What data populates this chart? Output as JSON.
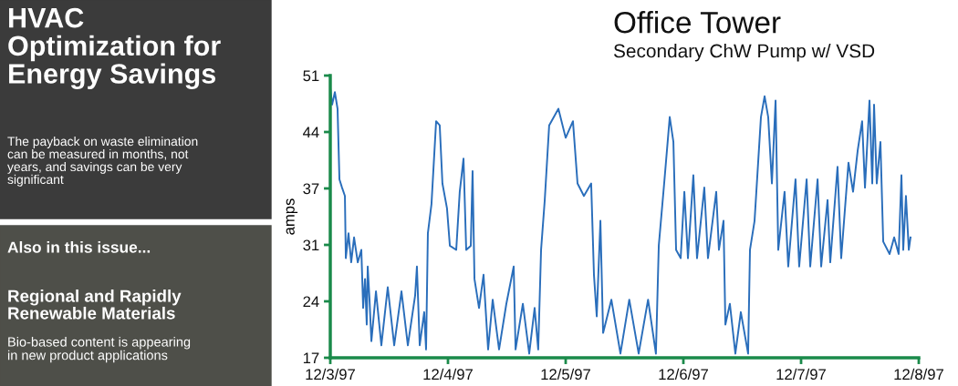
{
  "chart_data": {
    "type": "line",
    "title": "Office Tower",
    "subtitle": "Secondary ChW Pump w/ VSD",
    "ylabel": "amps",
    "annotations": [
      "HVAC\nOptimization for\nEnergy Savings",
      "The payback on waste elimination\ncan be measured in months, not\nyears, and savings can be very\nsignificant",
      "Also in this issue...",
      "Regional and Rapidly\nRenewable Materials",
      "Bio-based content is appearing\nin new product applications"
    ],
    "x": [
      "1997-12-03T00:00",
      "1997-12-03T00:23",
      "1997-12-03T00:56",
      "1997-12-03T01:29",
      "1997-12-03T01:52",
      "1997-12-03T02:24",
      "1997-12-03T02:59",
      "1997-12-03T03:10",
      "1997-12-03T03:43",
      "1997-12-03T04:16",
      "1997-12-03T04:51",
      "1997-12-03T05:36",
      "1997-12-03T06:20",
      "1997-12-03T06:42",
      "1997-12-03T07:05",
      "1997-12-03T07:26",
      "1997-12-03T07:38",
      "1997-12-03T08:00",
      "1997-12-03T08:23",
      "1997-12-03T09:19",
      "1997-12-03T10:25",
      "1997-12-03T11:43",
      "1997-12-03T13:02",
      "1997-12-03T14:31",
      "1997-12-03T15:49",
      "1997-12-03T17:18",
      "1997-12-03T17:40",
      "1997-12-03T18:14",
      "1997-12-03T19:09",
      "1997-12-03T19:32",
      "1997-12-03T19:54",
      "1997-12-03T20:38",
      "1997-12-03T21:35",
      "1997-12-03T22:19",
      "1997-12-03T22:52",
      "1997-12-03T23:48",
      "1997-12-04T00:23",
      "1997-12-04T01:41",
      "1997-12-04T02:24",
      "1997-12-04T03:10",
      "1997-12-04T03:43",
      "1997-12-04T04:39",
      "1997-12-04T05:01",
      "1997-12-04T05:24",
      "1997-12-04T06:20",
      "1997-12-04T07:15",
      "1997-12-04T08:11",
      "1997-12-04T09:07",
      "1997-12-04T10:25",
      "1997-12-04T11:54",
      "1997-12-04T13:24",
      "1997-12-04T13:47",
      "1997-12-04T15:16",
      "1997-12-04T16:34",
      "1997-12-04T17:40",
      "1997-12-04T18:24",
      "1997-12-04T18:59",
      "1997-12-04T19:44",
      "1997-12-04T20:38",
      "1997-12-04T22:31",
      "1997-12-05T00:00",
      "1997-12-05T01:29",
      "1997-12-05T02:25",
      "1997-12-05T03:43",
      "1997-12-05T05:12",
      "1997-12-05T05:46",
      "1997-12-05T06:20",
      "1997-12-05T07:05",
      "1997-12-05T07:38",
      "1997-12-05T09:19",
      "1997-12-05T11:10",
      "1997-12-05T12:58",
      "1997-12-05T14:53",
      "1997-12-05T16:48",
      "1997-12-05T18:24",
      "1997-12-05T18:59",
      "1997-12-05T20:05",
      "1997-12-05T21:13",
      "1997-12-05T21:58",
      "1997-12-05T22:31",
      "1997-12-05T23:27",
      "1997-12-06T00:12",
      "1997-12-06T00:56",
      "1997-12-06T02:02",
      "1997-12-06T02:47",
      "1997-12-06T04:16",
      "1997-12-06T05:01",
      "1997-12-06T06:42",
      "1997-12-06T07:15",
      "1997-12-06T08:11",
      "1997-12-06T08:34",
      "1997-12-06T09:29",
      "1997-12-06T10:36",
      "1997-12-06T11:43",
      "1997-12-06T13:12",
      "1997-12-06T13:35",
      "1997-12-06T14:31",
      "1997-12-06T15:49",
      "1997-12-06T16:34",
      "1997-12-06T17:18",
      "1997-12-06T18:03",
      "1997-12-06T18:48",
      "1997-12-06T19:21",
      "1997-12-06T20:38",
      "1997-12-06T21:23",
      "1997-12-06T22:52",
      "1997-12-06T23:37",
      "1997-12-07T01:08",
      "1997-12-07T01:52",
      "1997-12-07T03:22",
      "1997-12-07T04:06",
      "1997-12-07T05:24",
      "1997-12-07T05:57",
      "1997-12-07T07:26",
      "1997-12-07T08:11",
      "1997-12-07T09:40",
      "1997-12-07T10:36",
      "1997-12-07T11:33",
      "1997-12-07T12:27",
      "1997-12-07T13:02",
      "1997-12-07T13:57",
      "1997-12-07T14:31",
      "1997-12-07T14:53",
      "1997-12-07T15:26",
      "1997-12-07T16:11",
      "1997-12-07T16:45",
      "1997-12-07T18:03",
      "1997-12-07T18:59",
      "1997-12-07T19:54",
      "1997-12-07T20:28",
      "1997-12-07T20:50",
      "1997-12-07T21:23",
      "1997-12-07T21:58",
      "1997-12-07T22:19"
    ],
    "series": [
      {
        "color": "#2a6ebb",
        "values": [
          49.5,
          47.5,
          49,
          47,
          38.5,
          37.5,
          36.5,
          29,
          32,
          28.5,
          31.5,
          28.5,
          30,
          23,
          26.5,
          21,
          28,
          24,
          19,
          25,
          18.5,
          25.5,
          18.5,
          25,
          18.5,
          24.5,
          28,
          18.5,
          22.5,
          18,
          32,
          35.5,
          45.5,
          45,
          38,
          35,
          30.5,
          30,
          37,
          41,
          30,
          30.5,
          39.5,
          26.5,
          23,
          27,
          18,
          24,
          18,
          23.5,
          28,
          18,
          23.5,
          17.5,
          23,
          18,
          30,
          36,
          45,
          47,
          43.5,
          45.5,
          38,
          36.5,
          38,
          27,
          22,
          33.5,
          20,
          24,
          17.5,
          24,
          17.5,
          24,
          17.5,
          30.5,
          38,
          46,
          43,
          30,
          29,
          37,
          29,
          39,
          29,
          37.5,
          29,
          37,
          30,
          33.5,
          21,
          23.5,
          17.5,
          22.5,
          17.5,
          30,
          33.5,
          46,
          48.5,
          46,
          38,
          48,
          30,
          37,
          28,
          38.5,
          28,
          38.5,
          28,
          38.5,
          28,
          36,
          28.5,
          40,
          29,
          40.5,
          37,
          42,
          45.5,
          37.5,
          48,
          38,
          47.5,
          38,
          43,
          31,
          29.5,
          31.5,
          29.5,
          39,
          30,
          36.5,
          30,
          31.5
        ]
      }
    ],
    "xlim": [
      "1997-12-03",
      "1997-12-08"
    ],
    "xticks": [
      {
        "value": "1997-12-03",
        "label": "12/3/97"
      },
      {
        "value": "1997-12-04",
        "label": "12/4/97"
      },
      {
        "value": "1997-12-05",
        "label": "12/5/97"
      },
      {
        "value": "1997-12-06",
        "label": "12/6/97"
      },
      {
        "value": "1997-12-07",
        "label": "12/7/97"
      },
      {
        "value": "1997-12-08",
        "label": "12/8/97"
      }
    ],
    "ylim": [
      17,
      51
    ],
    "yticks": [
      17,
      {
        "value": 23.8,
        "label": "24"
      },
      {
        "value": 30.6,
        "label": "31"
      },
      {
        "value": 37.4,
        "label": "37"
      },
      {
        "value": 44.2,
        "label": "44"
      },
      51
    ],
    "grid": false,
    "legend": false,
    "marker": "none",
    "line_style": "solid"
  }
}
